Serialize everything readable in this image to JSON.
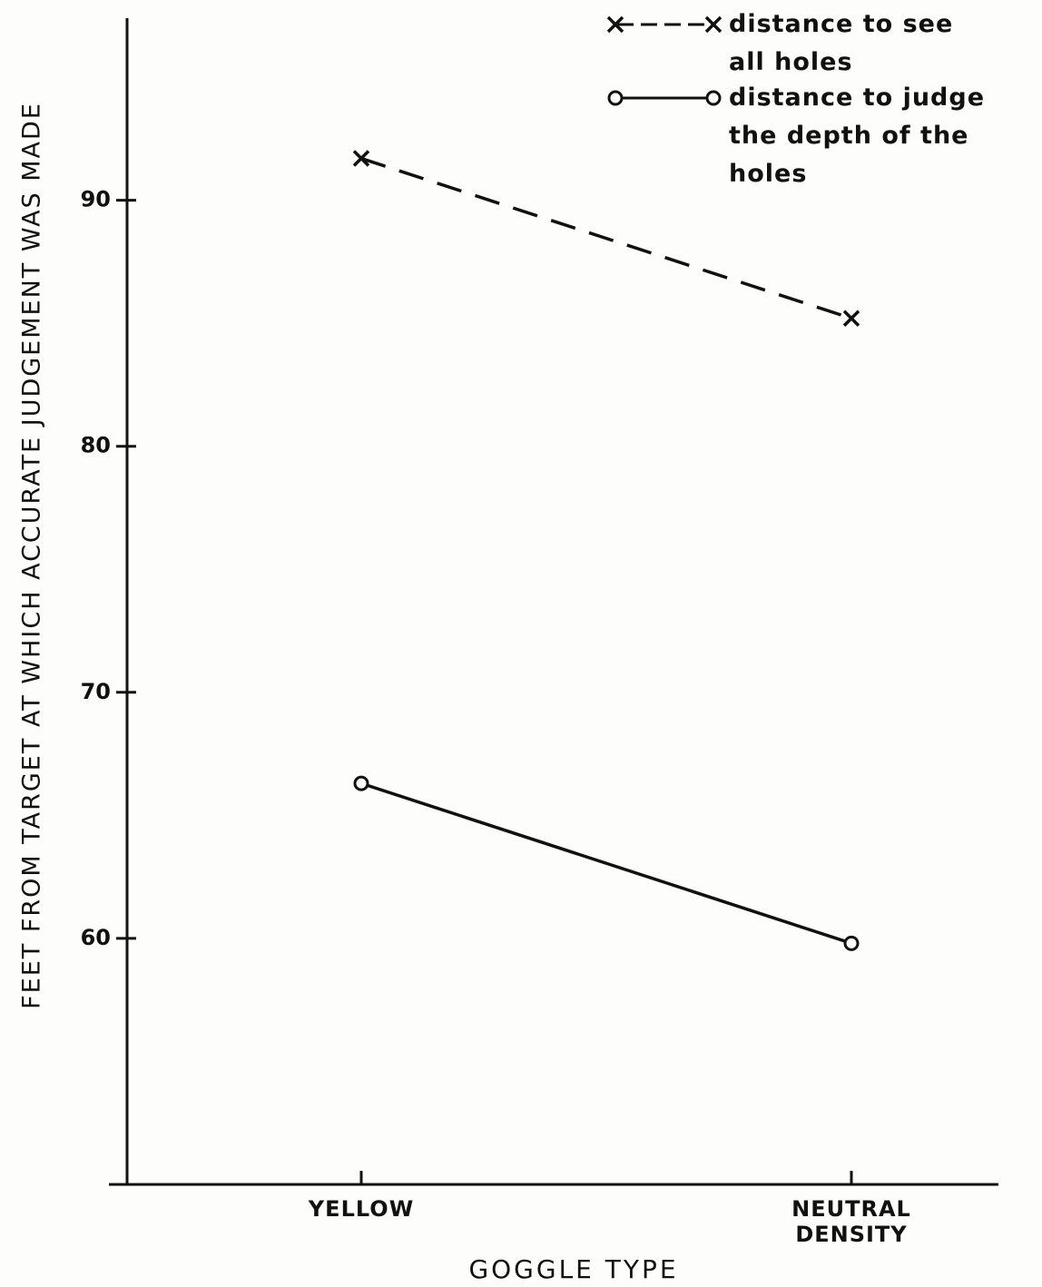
{
  "chart_data": {
    "type": "line",
    "x_label": "GOGGLE TYPE",
    "y_label": "FEET FROM TARGET AT WHICH ACCURATE JUDGEMENT WAS MADE",
    "categories": [
      "YELLOW",
      "NEUTRAL DENSITY"
    ],
    "series": [
      {
        "name": "distance to see all holes",
        "color": "#111111",
        "style": "dashed",
        "marker": "x",
        "values": [
          91.7,
          85.2
        ]
      },
      {
        "name": "distance to judge the depth of the holes",
        "color": "#111111",
        "style": "solid",
        "marker": "o",
        "values": [
          66.3,
          59.8
        ]
      }
    ],
    "ylim": [
      50,
      97.4
    ],
    "yticks": [
      60,
      70,
      80,
      90
    ],
    "grid": false,
    "legend": "top-right"
  }
}
